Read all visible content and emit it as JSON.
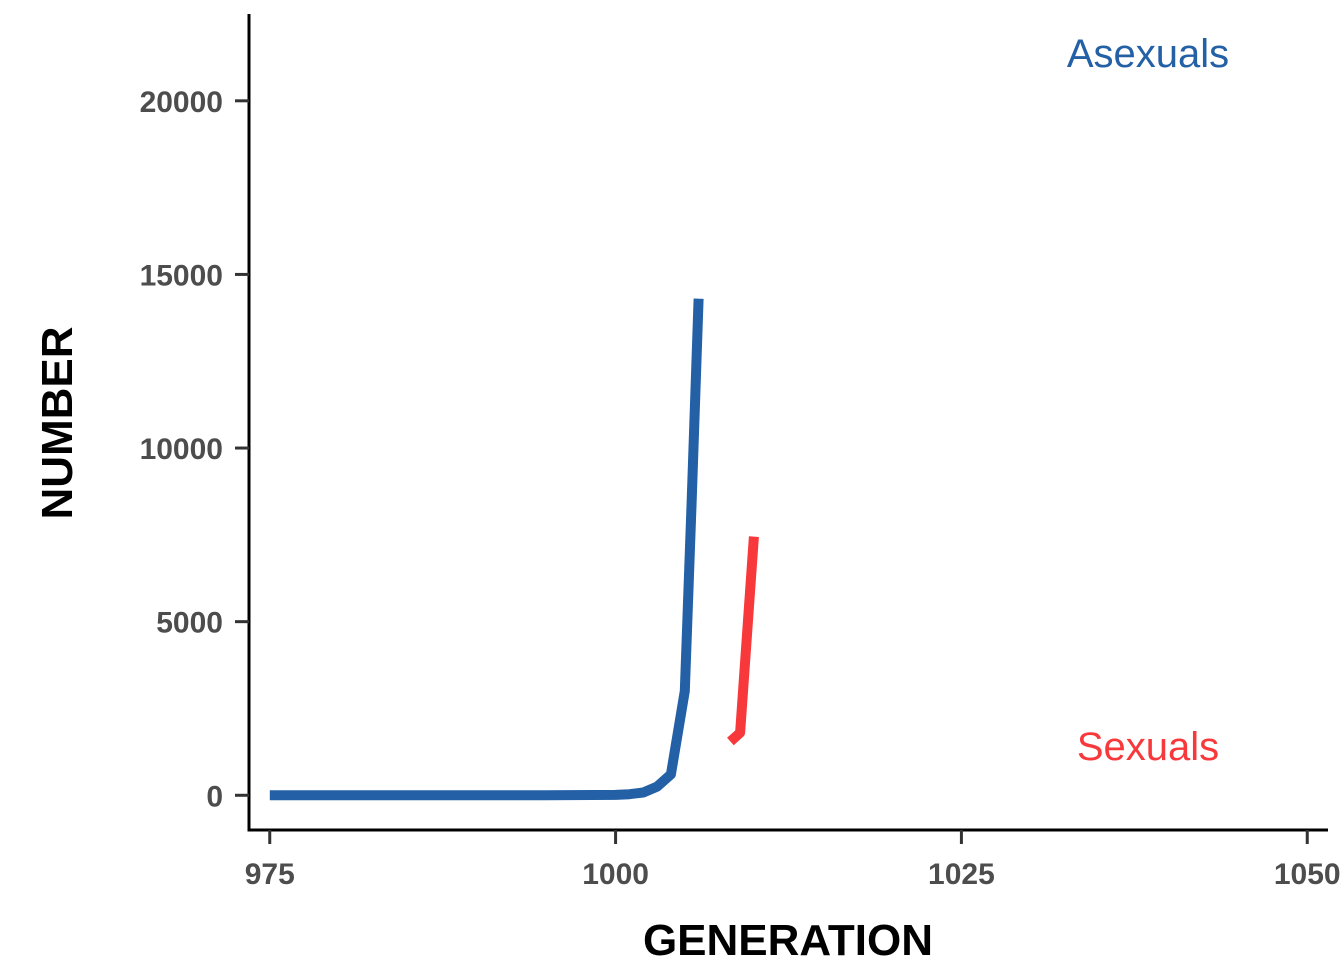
{
  "chart_data": {
    "type": "line",
    "title": "",
    "xlabel": "GENERATION",
    "ylabel": "NUMBER",
    "xlim": [
      973.5,
      1051.5
    ],
    "ylim": [
      -1000,
      22500
    ],
    "x_ticks": [
      975,
      1000,
      1025,
      1050
    ],
    "y_ticks": [
      0,
      5000,
      10000,
      15000,
      20000
    ],
    "grid": false,
    "legend": "none",
    "series": [
      {
        "name": "Asexuals",
        "color": "#2360a5",
        "x": [
          975,
          980,
          985,
          990,
          995,
          1000,
          1001,
          1002,
          1003,
          1004,
          1005,
          1005.5,
          1006
        ],
        "y": [
          0,
          0,
          0,
          0,
          0,
          10,
          30,
          80,
          250,
          600,
          3000,
          8500,
          14300
        ]
      },
      {
        "name": "Sexuals",
        "color": "#f8393c",
        "x": [
          1008.3,
          1009,
          1010
        ],
        "y": [
          1550,
          1800,
          7450
        ]
      }
    ]
  }
}
